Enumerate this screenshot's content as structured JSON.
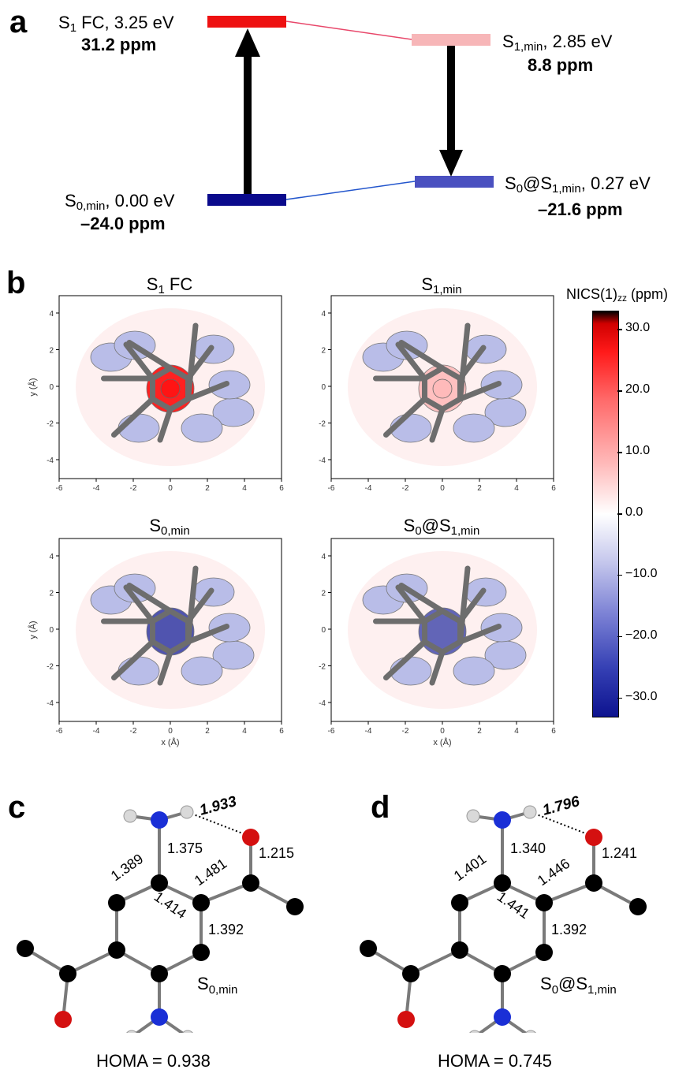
{
  "panel_a": {
    "letter": "a",
    "levels": [
      {
        "label": "S₁ FC, 3.25 eV",
        "ppm": "31.2 ppm",
        "color": "#ee1111"
      },
      {
        "label": "S₁,min, 2.85 eV",
        "ppm": "8.8 ppm",
        "color": "#f7b6b8"
      },
      {
        "label": "S₀,min, 0.00 eV",
        "ppm": "–24.0 ppm",
        "color": "#0a0a8c"
      },
      {
        "label": "S₀@S₁,min, 0.27 eV",
        "ppm": "–21.6 ppm",
        "color": "#4a50c0"
      }
    ],
    "connector_colors": {
      "excited": "#e8476a",
      "ground": "#2255cc"
    }
  },
  "panel_b": {
    "letter": "b",
    "maps": [
      {
        "title": "S₁ FC",
        "center_value": 31.2
      },
      {
        "title": "S₁,min",
        "center_value": 8.8
      },
      {
        "title": "S₀,min",
        "center_value": -24.0
      },
      {
        "title": "S₀@S₁,min",
        "center_value": -21.6
      }
    ],
    "x_axis_label": "x (Å)",
    "y_axis_label": "y (Å)",
    "x_ticks": [
      "-6",
      "-4",
      "-2",
      "0",
      "2",
      "4",
      "6"
    ],
    "y_ticks": [
      "4",
      "2",
      "0",
      "-2",
      "-4"
    ],
    "colorbar": {
      "title": "NICS(1)zz (ppm)",
      "ticks": [
        "30.0",
        "20.0",
        "10.0",
        "0.0",
        "−10.0",
        "−20.0",
        "−30.0"
      ],
      "range": [
        -33,
        33
      ]
    }
  },
  "panel_c": {
    "letter": "c",
    "hbond": "1.933",
    "bonds": [
      "1.375",
      "1.215",
      "1.389",
      "1.481",
      "1.414",
      "1.392"
    ],
    "state": "S0,min",
    "homa": "HOMA = 0.938"
  },
  "panel_d": {
    "letter": "d",
    "hbond": "1.796",
    "bonds": [
      "1.340",
      "1.241",
      "1.401",
      "1.446",
      "1.441",
      "1.392"
    ],
    "state": "S0@S1,min",
    "homa": "HOMA = 0.745"
  }
}
